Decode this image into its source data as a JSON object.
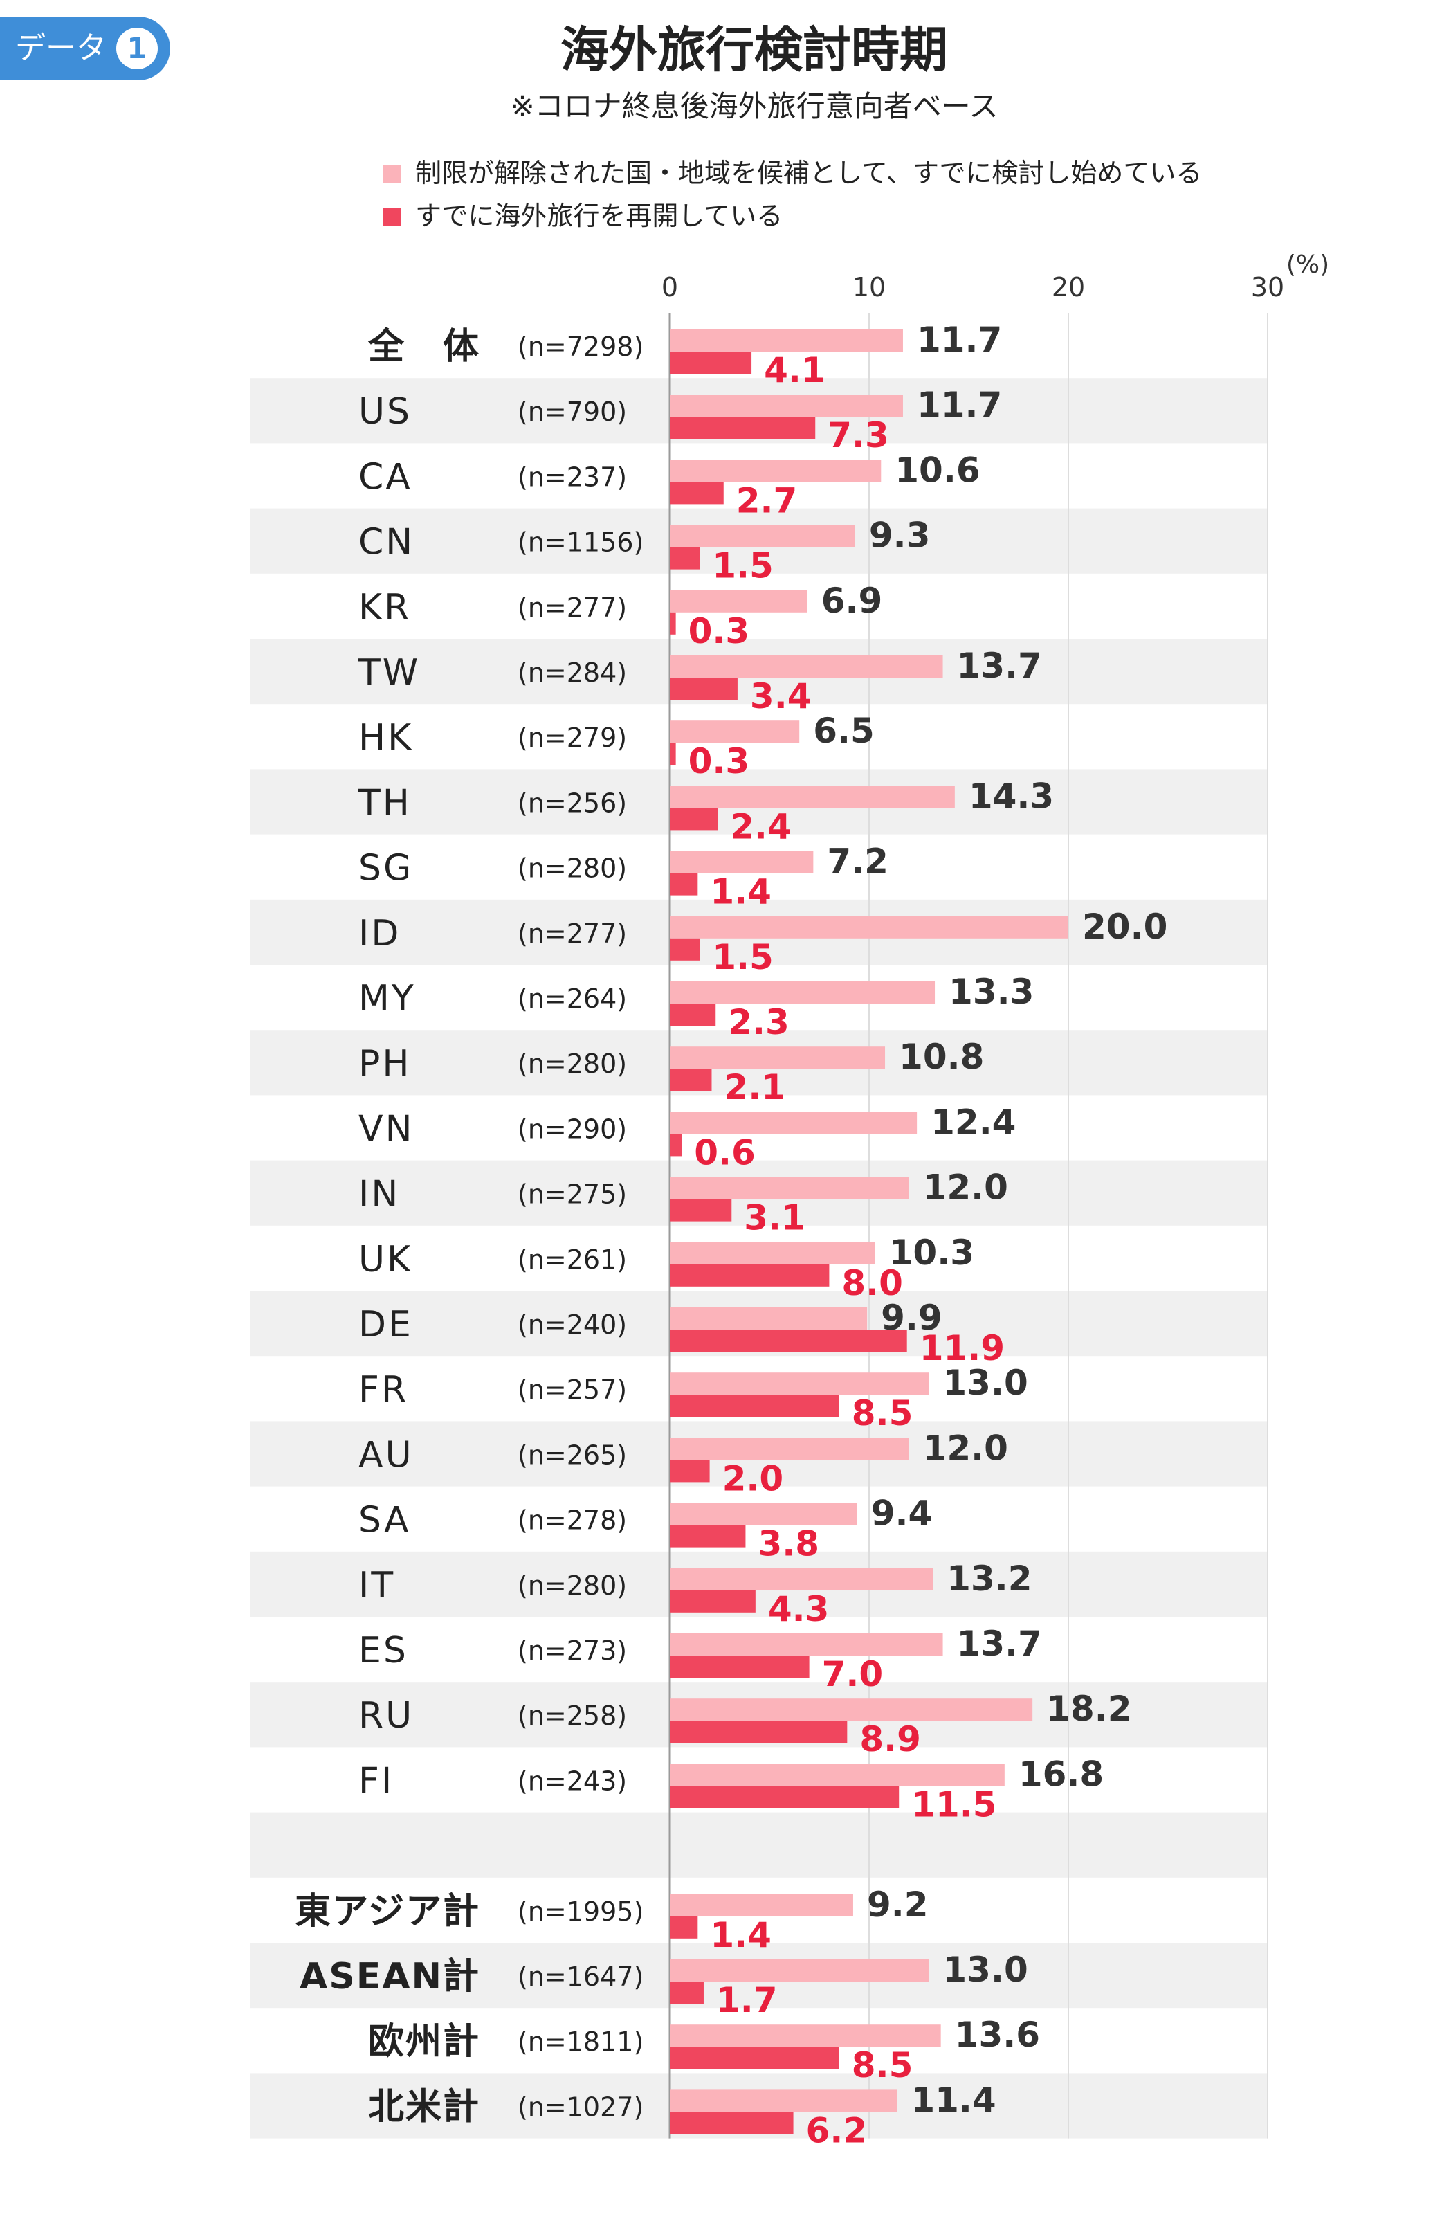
{
  "badge": {
    "label": "データ",
    "number": "1"
  },
  "chart_data": {
    "type": "bar",
    "orientation": "horizontal",
    "title": "海外旅行検討時期",
    "subtitle": "※コロナ終息後海外旅行意向者ベース",
    "unit": "(%)",
    "xlim": [
      0,
      30
    ],
    "ticks": [
      0,
      10,
      20,
      30
    ],
    "grid": true,
    "series": [
      {
        "name": "制限が解除された国・地域を候補として、すでに検討し始めている",
        "color": "#fbb3ba",
        "values": [
          11.7,
          11.7,
          10.6,
          9.3,
          6.9,
          13.7,
          6.5,
          14.3,
          7.2,
          20.0,
          13.3,
          10.8,
          12.4,
          12.0,
          10.3,
          9.9,
          13.0,
          12.0,
          9.4,
          13.2,
          13.7,
          18.2,
          16.8,
          null,
          9.2,
          13.0,
          13.6,
          11.4
        ]
      },
      {
        "name": "すでに海外旅行を再開している",
        "color": "#f0465e",
        "values": [
          4.1,
          7.3,
          2.7,
          1.5,
          0.3,
          3.4,
          0.3,
          2.4,
          1.4,
          1.5,
          2.3,
          2.1,
          0.6,
          3.1,
          8.0,
          11.9,
          8.5,
          2.0,
          3.8,
          4.3,
          7.0,
          8.9,
          11.5,
          null,
          1.4,
          1.7,
          8.5,
          6.2
        ]
      }
    ],
    "categories": [
      "全　体",
      "US",
      "CA",
      "CN",
      "KR",
      "TW",
      "HK",
      "TH",
      "SG",
      "ID",
      "MY",
      "PH",
      "VN",
      "IN",
      "UK",
      "DE",
      "FR",
      "AU",
      "SA",
      "IT",
      "ES",
      "RU",
      "FI",
      "",
      "東アジア計",
      "ASEAN計",
      "欧州計",
      "北米計"
    ],
    "sample_sizes": [
      "(n=7298)",
      "(n=790)",
      "(n=237)",
      "(n=1156)",
      "(n=277)",
      "(n=284)",
      "(n=279)",
      "(n=256)",
      "(n=280)",
      "(n=277)",
      "(n=264)",
      "(n=280)",
      "(n=290)",
      "(n=275)",
      "(n=261)",
      "(n=240)",
      "(n=257)",
      "(n=265)",
      "(n=278)",
      "(n=280)",
      "(n=273)",
      "(n=258)",
      "(n=243)",
      "",
      "(n=1995)",
      "(n=1647)",
      "(n=1811)",
      "(n=1027)"
    ],
    "value_label_color_light": "#333333",
    "value_label_color_dark": "#e8203e",
    "stripe_color": "#f0f0f0"
  }
}
